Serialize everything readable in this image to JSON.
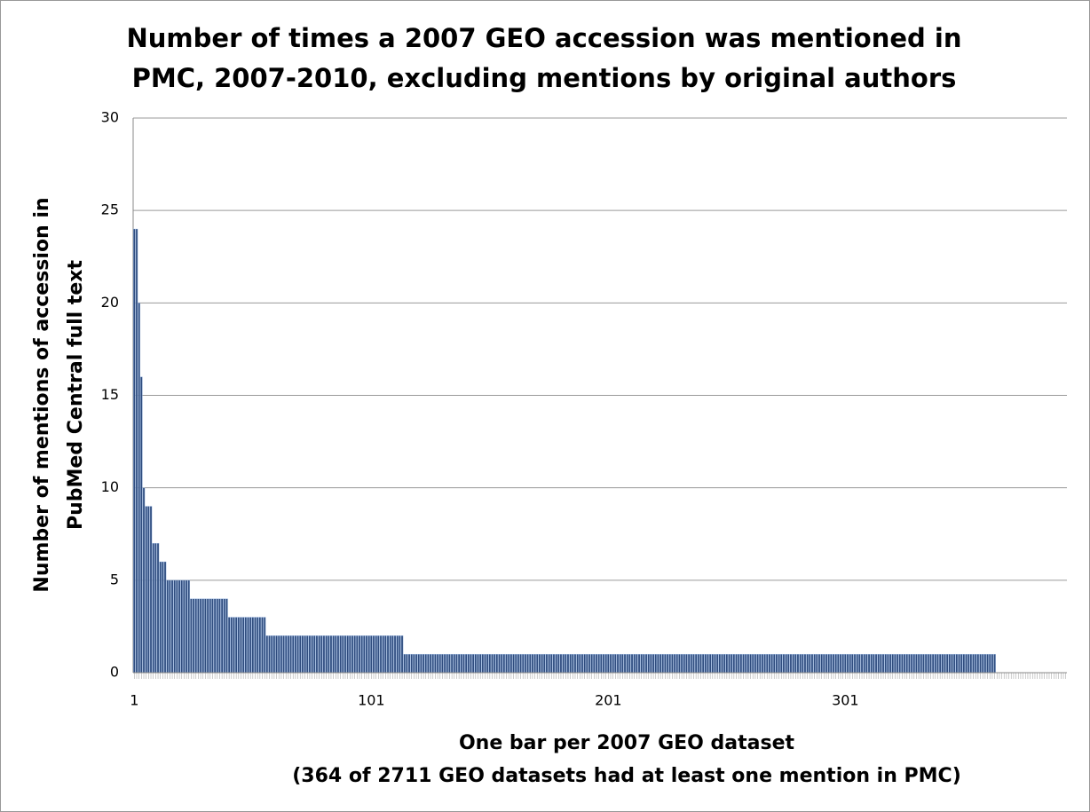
{
  "chart_data": {
    "type": "bar",
    "title": [
      "Number of times a 2007 GEO accession was mentioned in",
      "PMC, 2007-2010, excluding mentions by original authors"
    ],
    "y_label": [
      "Number of mentions of accession in",
      "PubMed Central full text"
    ],
    "x_label": [
      "One bar per 2007 GEO dataset",
      "(364 of 2711 GEO datasets had at least one mention in PMC)"
    ],
    "color": "#2f4c7e",
    "ylim": [
      0,
      30
    ],
    "yticks": [
      0,
      5,
      10,
      15,
      20,
      25,
      30
    ],
    "grid": true,
    "categories": [
      "1",
      null,
      null,
      null,
      null,
      null,
      null,
      null,
      null,
      null,
      null,
      null,
      null,
      null,
      null,
      null,
      null,
      null,
      null,
      null,
      null,
      null,
      null,
      null,
      null,
      null,
      null,
      null,
      null,
      null,
      null,
      null,
      null,
      null,
      null,
      null,
      null,
      null,
      null,
      null,
      null,
      null,
      null,
      null,
      null,
      null,
      null,
      null,
      null,
      null,
      null,
      null,
      null,
      null,
      null,
      null,
      null,
      null,
      null,
      null,
      null,
      null,
      null,
      null,
      null,
      null,
      null,
      null,
      null,
      null,
      null,
      null,
      null,
      null,
      null,
      null,
      null,
      null,
      null,
      null,
      null,
      null,
      null,
      null,
      null,
      null,
      null,
      null,
      null,
      null,
      null,
      null,
      null,
      null,
      null,
      null,
      null,
      null,
      null,
      null,
      "101",
      null,
      null,
      null,
      null,
      null,
      null,
      null,
      null,
      null,
      null,
      null,
      null,
      null,
      null,
      null,
      null,
      null,
      null,
      null,
      null,
      null,
      null,
      null,
      null,
      null,
      null,
      null,
      null,
      null,
      null,
      null,
      null,
      null,
      null,
      null,
      null,
      null,
      null,
      null,
      null,
      null,
      null,
      null,
      null,
      null,
      null,
      null,
      null,
      null,
      null,
      null,
      null,
      null,
      null,
      null,
      null,
      null,
      null,
      null,
      null,
      null,
      null,
      null,
      null,
      null,
      null,
      null,
      null,
      null,
      null,
      null,
      null,
      null,
      null,
      null,
      null,
      null,
      null,
      null,
      null,
      null,
      null,
      null,
      null,
      null,
      null,
      null,
      null,
      null,
      null,
      null,
      null,
      null,
      null,
      null,
      null,
      null,
      null,
      null,
      "201",
      null,
      null,
      null,
      null,
      null,
      null,
      null,
      null,
      null,
      null,
      null,
      null,
      null,
      null,
      null,
      null,
      null,
      null,
      null,
      null,
      null,
      null,
      null,
      null,
      null,
      null,
      null,
      null,
      null,
      null,
      null,
      null,
      null,
      null,
      null,
      null,
      null,
      null,
      null,
      null,
      null,
      null,
      null,
      null,
      null,
      null,
      null,
      null,
      null,
      null,
      null,
      null,
      null,
      null,
      null,
      null,
      null,
      null,
      null,
      null,
      null,
      null,
      null,
      null,
      null,
      null,
      null,
      null,
      null,
      null,
      null,
      null,
      null,
      null,
      null,
      null,
      null,
      null,
      null,
      null,
      null,
      null,
      null,
      null,
      null,
      null,
      null,
      null,
      null,
      null,
      null,
      null,
      null,
      null,
      null,
      null,
      null,
      null,
      null,
      "301",
      null,
      null,
      null,
      null,
      null,
      null,
      null,
      null,
      null,
      null,
      null,
      null,
      null,
      null,
      null,
      null,
      null,
      null,
      null,
      null,
      null,
      null,
      null,
      null,
      null,
      null,
      null,
      null,
      null,
      null,
      null,
      null,
      null,
      null,
      null,
      null,
      null,
      null,
      null,
      null,
      null,
      null,
      null,
      null,
      null,
      null,
      null,
      null,
      null,
      null,
      null,
      null,
      null,
      null,
      null,
      null,
      null,
      null,
      null,
      null,
      null,
      null,
      null,
      null,
      null,
      null,
      null,
      null,
      null,
      null,
      null,
      null,
      null,
      null,
      null,
      null,
      null,
      null,
      null,
      null,
      null,
      null,
      null,
      null,
      null,
      null,
      null,
      null,
      null,
      null,
      null,
      null,
      null
    ],
    "values": [
      24,
      24,
      20,
      16,
      10,
      9,
      9,
      9,
      7,
      7,
      7,
      6,
      6,
      6,
      5,
      5,
      5,
      5,
      5,
      5,
      5,
      5,
      5,
      5,
      4,
      4,
      4,
      4,
      4,
      4,
      4,
      4,
      4,
      4,
      4,
      4,
      4,
      4,
      4,
      4,
      3,
      3,
      3,
      3,
      3,
      3,
      3,
      3,
      3,
      3,
      3,
      3,
      3,
      3,
      3,
      3,
      2,
      2,
      2,
      2,
      2,
      2,
      2,
      2,
      2,
      2,
      2,
      2,
      2,
      2,
      2,
      2,
      2,
      2,
      2,
      2,
      2,
      2,
      2,
      2,
      2,
      2,
      2,
      2,
      2,
      2,
      2,
      2,
      2,
      2,
      2,
      2,
      2,
      2,
      2,
      2,
      2,
      2,
      2,
      2,
      2,
      2,
      2,
      2,
      2,
      2,
      2,
      2,
      2,
      2,
      2,
      2,
      2,
      2,
      1,
      1,
      1,
      1,
      1,
      1,
      1,
      1,
      1,
      1,
      1,
      1,
      1,
      1,
      1,
      1,
      1,
      1,
      1,
      1,
      1,
      1,
      1,
      1,
      1,
      1,
      1,
      1,
      1,
      1,
      1,
      1,
      1,
      1,
      1,
      1,
      1,
      1,
      1,
      1,
      1,
      1,
      1,
      1,
      1,
      1,
      1,
      1,
      1,
      1,
      1,
      1,
      1,
      1,
      1,
      1,
      1,
      1,
      1,
      1,
      1,
      1,
      1,
      1,
      1,
      1,
      1,
      1,
      1,
      1,
      1,
      1,
      1,
      1,
      1,
      1,
      1,
      1,
      1,
      1,
      1,
      1,
      1,
      1,
      1,
      1,
      1,
      1,
      1,
      1,
      1,
      1,
      1,
      1,
      1,
      1,
      1,
      1,
      1,
      1,
      1,
      1,
      1,
      1,
      1,
      1,
      1,
      1,
      1,
      1,
      1,
      1,
      1,
      1,
      1,
      1,
      1,
      1,
      1,
      1,
      1,
      1,
      1,
      1,
      1,
      1,
      1,
      1,
      1,
      1,
      1,
      1,
      1,
      1,
      1,
      1,
      1,
      1,
      1,
      1,
      1,
      1,
      1,
      1,
      1,
      1,
      1,
      1,
      1,
      1,
      1,
      1,
      1,
      1,
      1,
      1,
      1,
      1,
      1,
      1,
      1,
      1,
      1,
      1,
      1,
      1,
      1,
      1,
      1,
      1,
      1,
      1,
      1,
      1,
      1,
      1,
      1,
      1,
      1,
      1,
      1,
      1,
      1,
      1,
      1,
      1,
      1,
      1,
      1,
      1,
      1,
      1,
      1,
      1,
      1,
      1,
      1,
      1,
      1,
      1,
      1,
      1,
      1,
      1,
      1,
      1,
      1,
      1,
      1,
      1,
      1,
      1,
      1,
      1,
      1,
      1,
      1,
      1,
      1,
      1,
      1,
      1,
      1,
      1,
      1,
      1,
      1,
      1,
      1,
      1,
      1,
      1,
      1,
      1,
      1,
      1,
      1,
      1,
      1,
      1,
      1,
      1,
      1,
      1,
      1,
      1,
      1,
      1,
      1,
      1,
      0,
      0,
      0,
      0,
      0,
      0,
      0,
      0,
      0,
      0,
      0,
      0,
      0,
      0,
      0,
      0,
      0,
      0,
      0,
      0,
      0,
      0,
      0,
      0,
      0,
      0,
      0,
      0,
      0,
      0
    ]
  }
}
